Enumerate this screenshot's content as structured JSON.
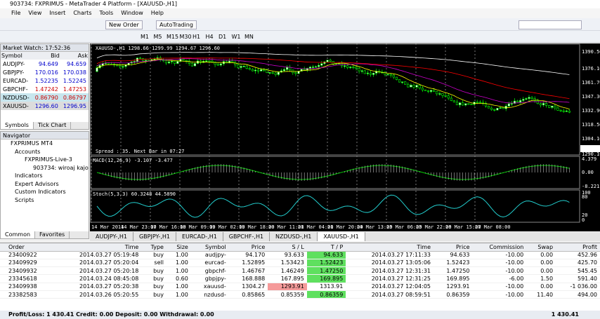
{
  "window": {
    "title": "903734: FXPRIMUS - MetaTrader 4 Platform - [XAUUSD-,H1]",
    "menu": [
      "File",
      "View",
      "Insert",
      "Charts",
      "Tools",
      "Window",
      "Help"
    ],
    "toolbar": {
      "new_order": "New Order",
      "auto_trading": "AutoTrading",
      "timeframes": [
        "M1",
        "M5",
        "M15",
        "M30",
        "H1",
        "H4",
        "D1",
        "W1",
        "MN"
      ]
    }
  },
  "market_watch": {
    "title": "Market Watch: 17:52:36",
    "columns": [
      "Symbol",
      "Bid",
      "Ask"
    ],
    "rows": [
      [
        "AUDJPY-",
        "94.649",
        "94.659"
      ],
      [
        "GBPJPY-",
        "170.016",
        "170.038"
      ],
      [
        "EURCAD-",
        "1.52235",
        "1.52245"
      ],
      [
        "GBPCHF-",
        "1.47242",
        "1.47253"
      ],
      [
        "NZDUSD-",
        "0.86790",
        "0.86797"
      ],
      [
        "XAUUSD-",
        "1296.60",
        "1296.95"
      ]
    ],
    "tabs": [
      "Symbols",
      "Tick Chart"
    ]
  },
  "navigator": {
    "title": "Navigator",
    "items": [
      "FXPRIMUS MT4",
      "Accounts",
      "FXPRIMUS-Live-3",
      "903734: wiroaj kajor",
      "Indicators",
      "Expert Advisors",
      "Custom Indicators",
      "Scripts"
    ],
    "tabs": [
      "Common",
      "Favorites"
    ]
  },
  "chart": {
    "header": "XAUUSD-,H1  1298.66 1299.99 1294.67 1296.60",
    "spread": "Spread : 35. Next Bar in 07:27",
    "price_labels": [
      "1390.50",
      "1376.10",
      "1361.70",
      "1347.30",
      "1332.90",
      "1318.50",
      "1304.10",
      "1296.60",
      "1290.10"
    ],
    "macd": {
      "label": "MACD(12,26,9) -3.107 -3.477",
      "labels": [
        "4.379",
        "0.00",
        "-8.221"
      ]
    },
    "stoch": {
      "label": "Stoch(5,3,3) 60.3248 44.5890",
      "labels": [
        "100",
        "80",
        "20",
        "0"
      ]
    },
    "time_labels": [
      "14 Mar 2014",
      "14 Mar 23:00",
      "17 Mar 16:00",
      "18 Mar 09:00",
      "19 Mar 02:00",
      "19 Mar 18:00",
      "20 Mar 11:00",
      "21 Mar 04:00",
      "21 Mar 20:00",
      "24 Mar 13:00",
      "25 Mar 06:00",
      "25 Mar 22:00",
      "26 Mar 15:00",
      "27 Mar 08:00"
    ],
    "tabs": [
      "AUDJPY-,H1",
      "GBPJPY-,H1",
      "EURCAD-,H1",
      "GBPCHF-,H1",
      "NZDUSD-,H1",
      "XAUUSD-,H1"
    ]
  },
  "table": {
    "columns": [
      "Order",
      "Time",
      "Type",
      "Size",
      "Symbol",
      "Price",
      "S / L",
      "T / P",
      "Time",
      "Price",
      "Commission",
      "Swap",
      "Profit"
    ],
    "rows": [
      [
        "23400922",
        "2014.03.27 05:19:48",
        "buy",
        "1.00",
        "audjpy-",
        "94.170",
        "93.633",
        "94.633",
        "2014.03.27 17:11:33",
        "94.633",
        "-10.00",
        "0.00",
        "452.96"
      ],
      [
        "23409929",
        "2014.03.27 05:20:04",
        "sell",
        "1.00",
        "eurcad-",
        "1.52895",
        "1.53423",
        "1.52423",
        "2014.03.27 13:05:06",
        "1.52423",
        "-10.00",
        "0.00",
        "425.70"
      ],
      [
        "23409932",
        "2014.03.27 05:20:18",
        "buy",
        "1.00",
        "gbpchf-",
        "1.46767",
        "1.46249",
        "1.47250",
        "2014.03.27 12:31:31",
        "1.47250",
        "-10.00",
        "0.00",
        "545.45"
      ],
      [
        "23345618",
        "2014.03.24 08:45:08",
        "buy",
        "0.60",
        "gbpjpy-",
        "168.888",
        "167.895",
        "169.895",
        "2014.03.27 12:31:25",
        "169.895",
        "-6.00",
        "1.50",
        "591.40"
      ],
      [
        "23409938",
        "2014.03.27 05:20:38",
        "buy",
        "1.00",
        "xauusd-",
        "1304.27",
        "1293.91",
        "1313.91",
        "2014.03.27 12:04:05",
        "1293.91",
        "-10.00",
        "0.00",
        "-1 036.00"
      ],
      [
        "23382583",
        "2014.03.26 05:20:55",
        "buy",
        "1.00",
        "nzdusd-",
        "0.85865",
        "0.85359",
        "0.86359",
        "2014.03.27 08:59:51",
        "0.86359",
        "-10.00",
        "11.40",
        "494.00"
      ]
    ],
    "footer": "Profit/Loss: 1 430.41  Credit: 0.00  Deposit: 0.00  Withdrawal: 0.00",
    "total": "1 430.41"
  }
}
